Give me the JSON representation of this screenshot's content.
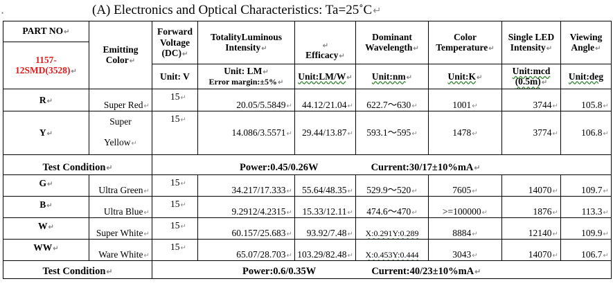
{
  "caption": {
    "anchor": "•",
    "title": "(A) Electronics and Optical Characteristics: Ta=25˚C"
  },
  "return_mark": "↵",
  "headers": {
    "part_no": "PART NO",
    "part_value": "1157-12SMD(3528)",
    "emitting_color": "Emitting Color",
    "forward_voltage": "Forward Voltage (DC)",
    "forward_voltage_unit": "Unit: V",
    "luminous": "TotalityLuminous Intensity",
    "luminous_unit": "Unit: LM",
    "luminous_error": "Error margin:±5%",
    "efficacy": "Efficacy",
    "efficacy_unit": "Unit:LM/W",
    "wavelength": "Dominant Wavelength",
    "wavelength_unit": "Unit:nm",
    "color_temp": "Color Temperature",
    "color_temp_unit": "Unit:K",
    "single_led": "Single LED Intensity",
    "single_led_unit": "Unit:mcd (0.5m)",
    "viewing": "Viewing Angle",
    "viewing_unit": "Unit:deg"
  },
  "group1": [
    {
      "part": "R",
      "color": "Super Red",
      "voltage": "15",
      "luminous": "20.05/5.5849",
      "efficacy": "44.12/21.04",
      "wavelength": "622.7～630",
      "temp": "1001",
      "intensity": "3744",
      "angle": "105.8"
    },
    {
      "part": "Y",
      "color_line1": "Super",
      "color_line2": "Yellow",
      "voltage": "15",
      "luminous": "14.086/3.5571",
      "efficacy": "29.44/13.87",
      "wavelength": "593.1～595",
      "temp": "1478",
      "intensity": "3774",
      "angle": "106.8"
    }
  ],
  "condition1": {
    "label": "Test Condition",
    "power": "Power:0.45/0.26W",
    "current": "Current:30/17±10%mA"
  },
  "group2": [
    {
      "part": "G",
      "color": "Ultra Green",
      "voltage": "15",
      "luminous": "34.217/17.333",
      "efficacy": "55.64/48.35",
      "wavelength": "529.9～520",
      "temp": "7605",
      "intensity": "14070",
      "angle": "109.7"
    },
    {
      "part": "B",
      "color": "Ultra Blue",
      "voltage": "15",
      "luminous": "9.2912/4.2315",
      "efficacy": "15.33/12.11",
      "wavelength": "474.6～470",
      "temp": ">=100000",
      "intensity": "1876",
      "angle": "113.3"
    },
    {
      "part": "W",
      "color": "Super White",
      "voltage": "15",
      "luminous": "60.157/25.683",
      "efficacy": "93.92/7.48",
      "wavelength": "X:0.291Y:0.289",
      "temp": "8884",
      "intensity": "12140",
      "angle": "109.9"
    },
    {
      "part": "WW",
      "color": "Ware White",
      "voltage": "15",
      "luminous": "65.07/28.703",
      "efficacy": "103.29/82.48",
      "wavelength": "X:0.453Y:0.444",
      "temp": "3043",
      "intensity": "14070",
      "angle": "106.7"
    }
  ],
  "condition2": {
    "label": "Test Condition",
    "power": "Power:0.6/0.35W",
    "current": "Current:40/23±10%mA"
  }
}
